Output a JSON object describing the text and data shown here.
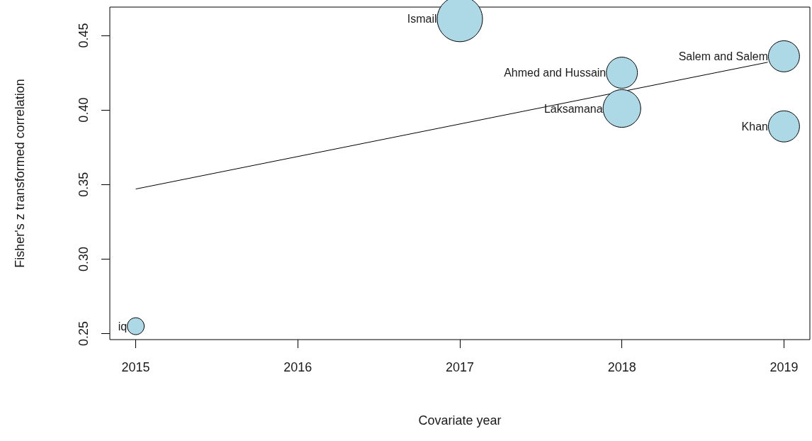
{
  "chart_data": {
    "type": "bubble",
    "xlabel": "Covariate year",
    "ylabel": "Fisher's z transformed correlation",
    "xlim": [
      2014.84,
      2019.16
    ],
    "xticks": [
      2015,
      2016,
      2017,
      2018,
      2019
    ],
    "ylim": [
      0.246,
      0.469
    ],
    "yticks": [
      0.25,
      {
        "value": 0.3,
        "label": "0.30"
      },
      0.35,
      {
        "value": 0.4,
        "label": "0.40"
      },
      0.45
    ],
    "grid": false,
    "series": [
      {
        "color": "#add8e6",
        "x": [
          2015,
          2017,
          2018,
          2018,
          2019,
          2019
        ],
        "values": [
          0.255,
          0.461,
          0.425,
          0.401,
          0.436,
          0.389
        ],
        "sizes": [
          0.14,
          1,
          0.47,
          0.69,
          0.47,
          0.47
        ]
      },
      {
        "type": "line",
        "color": "#000000",
        "x": [
          2015,
          2018.9
        ],
        "values": [
          0.347,
          0.432
        ]
      }
    ],
    "annotations": [
      {
        "text": "iq",
        "x": 2015,
        "y": 0.255
      },
      {
        "text": "Ismail",
        "x": 2017,
        "y": 0.461
      },
      {
        "text": "Ahmed and Hussain",
        "x": 2018,
        "y": 0.425
      },
      {
        "text": "Laksamana",
        "x": 2018,
        "y": 0.401
      },
      {
        "text": "Salem and Salem",
        "x": 2019,
        "y": 0.436
      },
      {
        "text": "Khan",
        "x": 2019,
        "y": 0.389
      }
    ]
  }
}
